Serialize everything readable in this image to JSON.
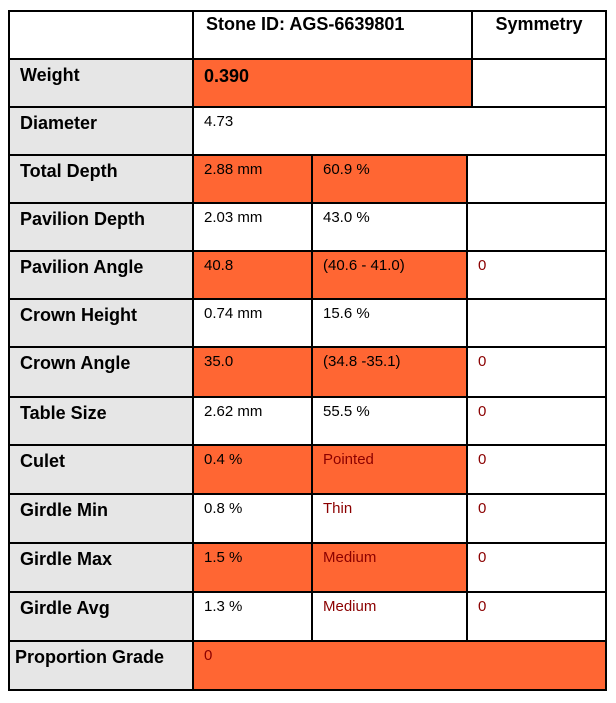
{
  "header": {
    "stone_id": "Stone ID: AGS-6639801",
    "symmetry": "Symmetry"
  },
  "rows": [
    {
      "label": "Weight",
      "value": "0.390"
    },
    {
      "label": "Diameter",
      "value": "4.73"
    },
    {
      "label": "Total Depth",
      "value": "2.88 mm",
      "pct": "60.9 %"
    },
    {
      "label": "Pavilion Depth",
      "value": "2.03 mm",
      "pct": "43.0 %"
    },
    {
      "label": "Pavilion Angle",
      "value": "40.8",
      "range": "(40.6 - 41.0)",
      "sym": "0"
    },
    {
      "label": "Crown Height",
      "value": "0.74 mm",
      "pct": "15.6 %"
    },
    {
      "label": "Crown Angle",
      "value": "35.0",
      "range": "(34.8 -35.1)",
      "sym": "0"
    },
    {
      "label": "Table Size",
      "value": "2.62 mm",
      "pct": "55.5 %",
      "sym": "0"
    },
    {
      "label": "Culet",
      "value": "0.4 %",
      "desc": "Pointed",
      "sym": "0"
    },
    {
      "label": "Girdle Min",
      "value": "0.8 %",
      "desc": "Thin",
      "sym": "0"
    },
    {
      "label": "Girdle Max",
      "value": "1.5 %",
      "desc": "Medium",
      "sym": "0"
    },
    {
      "label": "Girdle Avg",
      "value": "1.3 %",
      "desc": "Medium",
      "sym": "0"
    },
    {
      "label": "Proportion Grade",
      "value": "0"
    }
  ]
}
